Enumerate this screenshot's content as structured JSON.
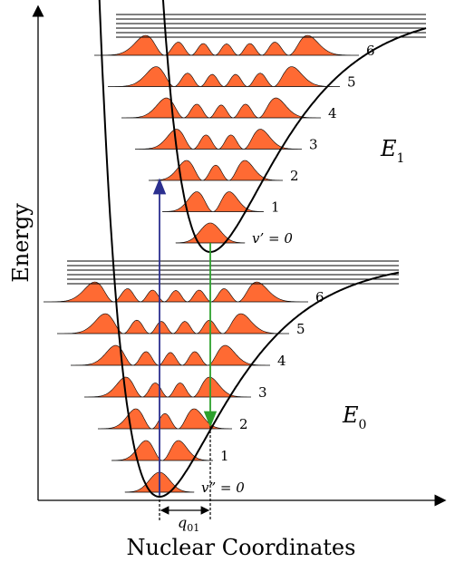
{
  "axes": {
    "y_label": "Energy",
    "x_label": "Nuclear Coordinates"
  },
  "upper_state": {
    "label_main": "E",
    "label_sub": "1",
    "levels": [
      "v’ = 0",
      "1",
      "2",
      "3",
      "4",
      "5",
      "6"
    ]
  },
  "lower_state": {
    "label_main": "E",
    "label_sub": "0",
    "levels": [
      "v” = 0",
      "1",
      "2",
      "3",
      "4",
      "5",
      "6"
    ]
  },
  "displacement": {
    "label_main": "q",
    "label_sub": "01"
  },
  "colors": {
    "wavefunction_fill": "#ff6a33",
    "absorption_arrow": "#2b2f8f",
    "emission_arrow": "#2ca02c",
    "curves": "#000000"
  }
}
